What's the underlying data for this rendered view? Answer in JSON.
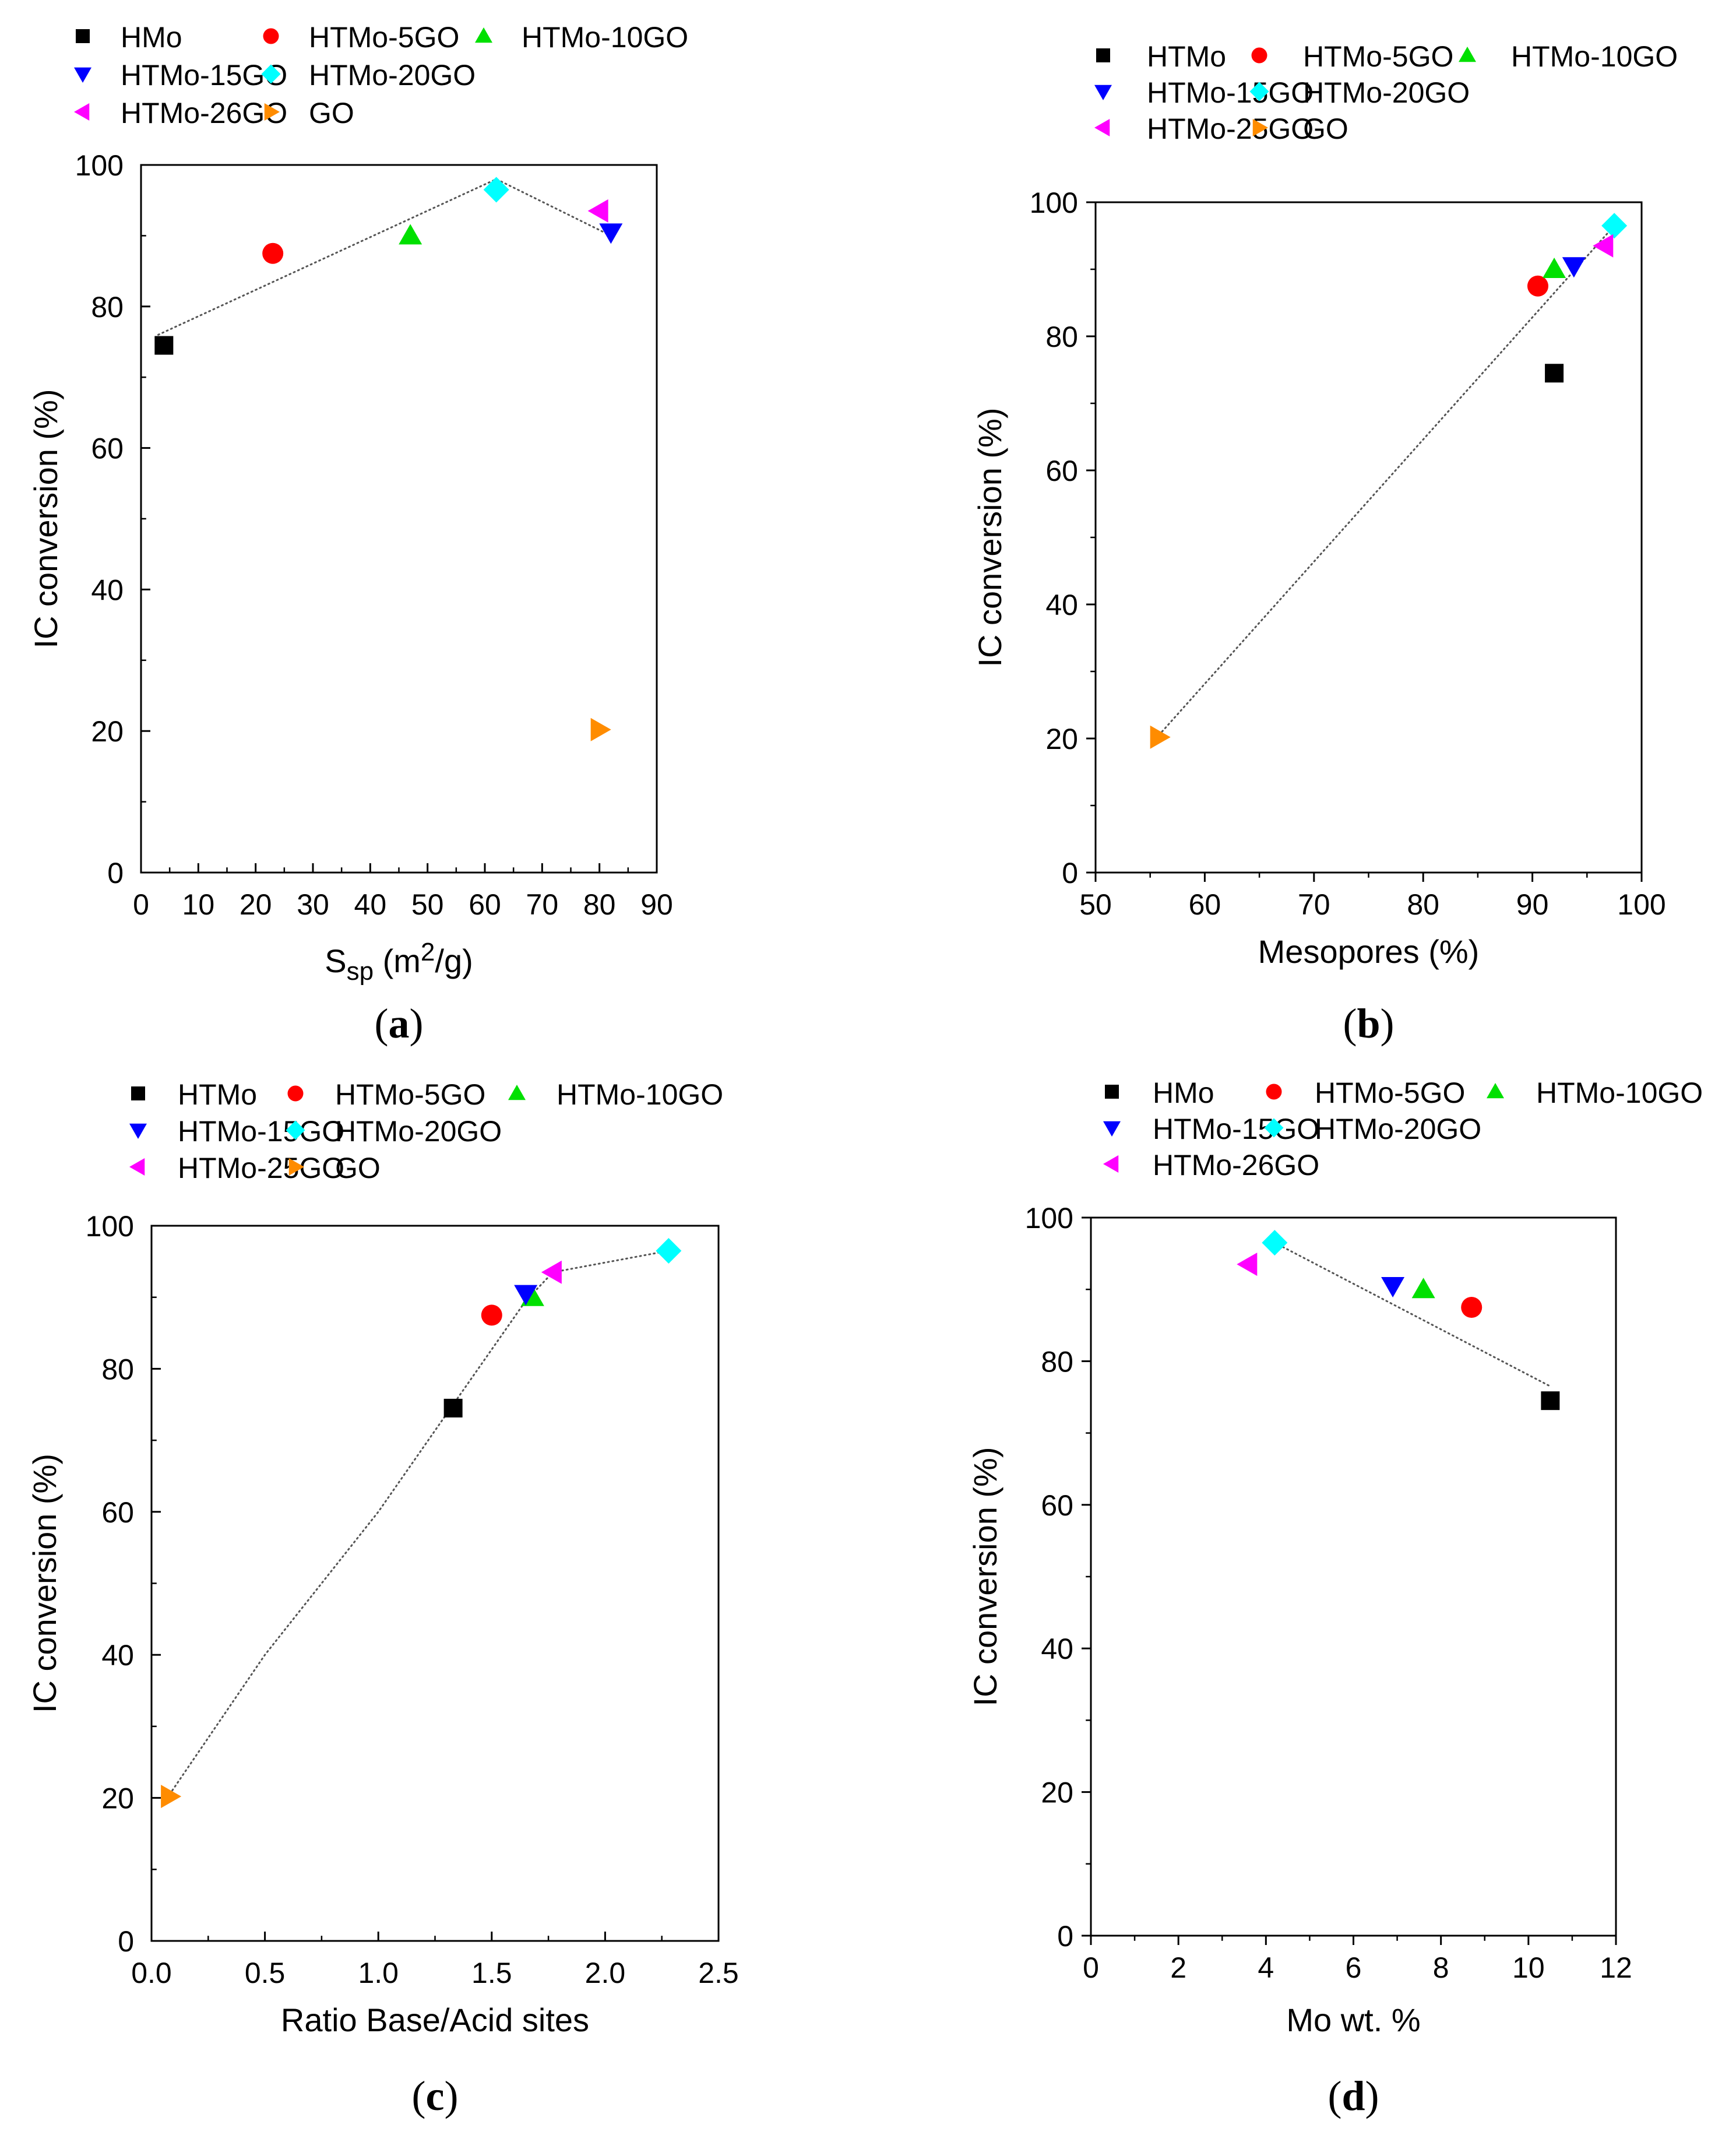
{
  "colors": {
    "HMo": "#000000",
    "HTMo": "#000000",
    "HTMo-5GO": "#ff0000",
    "HTMo-10GO": "#00e000",
    "HTMo-15GO": "#0000ff",
    "HTMo-20GO": "#00ffff",
    "HTMo-26GO": "#ff00ff",
    "HTMo-25GO": "#ff00ff",
    "GO": "#ff8c00",
    "trend": "#555555"
  },
  "chart_data": [
    {
      "id": "a",
      "type": "scatter",
      "caption": "a",
      "xlabel": "S",
      "xlabel_sub": "sp",
      "xlabel_unit_open": " (m",
      "xlabel_sup": "2",
      "xlabel_unit_close": "/g)",
      "ylabel": "IC conversion (%)",
      "xlim": [
        0,
        90
      ],
      "ylim": [
        0,
        100
      ],
      "xticks": [
        0,
        10,
        20,
        30,
        40,
        50,
        60,
        70,
        80,
        90
      ],
      "xtick_labels": [
        "0",
        "10",
        "20",
        "30",
        "40",
        "50",
        "60",
        "70",
        "80",
        "90"
      ],
      "yticks": [
        0,
        20,
        40,
        60,
        80,
        100
      ],
      "ytick_labels": [
        "0",
        "20",
        "40",
        "60",
        "80",
        "100"
      ],
      "legend_rows": [
        [
          "HMo",
          "HTMo-5GO",
          "HTMo-10GO"
        ],
        [
          "HTMo-15GO",
          "HTMo-20GO"
        ],
        [
          "HTMo-26GO",
          "GO"
        ]
      ],
      "series": [
        {
          "name": "HMo",
          "marker": "square",
          "x": 4,
          "y": 74.5
        },
        {
          "name": "HTMo-5GO",
          "marker": "circle",
          "x": 23,
          "y": 87.5
        },
        {
          "name": "HTMo-10GO",
          "marker": "triangle-up",
          "x": 47,
          "y": 90
        },
        {
          "name": "HTMo-15GO",
          "marker": "triangle-down",
          "x": 82,
          "y": 90.5
        },
        {
          "name": "HTMo-20GO",
          "marker": "diamond",
          "x": 62,
          "y": 96.5
        },
        {
          "name": "HTMo-26GO",
          "marker": "triangle-left",
          "x": 80,
          "y": 93.5
        },
        {
          "name": "GO",
          "marker": "triangle-right",
          "x": 80,
          "y": 20.2
        }
      ],
      "trendline": {
        "x": [
          3,
          62,
          82
        ],
        "y": [
          76,
          98,
          90
        ]
      }
    },
    {
      "id": "b",
      "type": "scatter",
      "caption": "b",
      "xlabel": "Mesopores (%)",
      "ylabel": "IC conversion (%)",
      "xlim": [
        50,
        100
      ],
      "ylim": [
        0,
        100
      ],
      "xticks": [
        50,
        60,
        70,
        80,
        90,
        100
      ],
      "xtick_labels": [
        "50",
        "60",
        "70",
        "80",
        "90",
        "100"
      ],
      "yticks": [
        0,
        20,
        40,
        60,
        80,
        100
      ],
      "ytick_labels": [
        "0",
        "20",
        "40",
        "60",
        "80",
        "100"
      ],
      "legend_rows": [
        [
          "HTMo",
          "HTMo-5GO",
          "HTMo-10GO"
        ],
        [
          "HTMo-15GO",
          "HTMo-20GO"
        ],
        [
          "HTMo-25GO",
          "GO"
        ]
      ],
      "series": [
        {
          "name": "HTMo",
          "marker": "square",
          "x": 92,
          "y": 74.5
        },
        {
          "name": "HTMo-5GO",
          "marker": "circle",
          "x": 90.5,
          "y": 87.5
        },
        {
          "name": "HTMo-10GO",
          "marker": "triangle-up",
          "x": 92,
          "y": 90
        },
        {
          "name": "HTMo-15GO",
          "marker": "triangle-down",
          "x": 93.8,
          "y": 90.5
        },
        {
          "name": "HTMo-20GO",
          "marker": "diamond",
          "x": 97.5,
          "y": 96.5
        },
        {
          "name": "HTMo-25GO",
          "marker": "triangle-left",
          "x": 96.6,
          "y": 93.5
        },
        {
          "name": "GO",
          "marker": "triangle-right",
          "x": 55.8,
          "y": 20.2
        }
      ],
      "trendline": {
        "x": [
          55.8,
          97.5
        ],
        "y": [
          20.5,
          96.5
        ]
      }
    },
    {
      "id": "c",
      "type": "scatter",
      "caption": "c",
      "xlabel": "Ratio Base/Acid sites",
      "ylabel": "IC conversion (%)",
      "xlim": [
        0,
        2.5
      ],
      "ylim": [
        0,
        100
      ],
      "xticks": [
        0,
        0.5,
        1,
        1.5,
        2,
        2.5
      ],
      "xtick_labels": [
        "0.0",
        "0.5",
        "1.0",
        "1.5",
        "2.0",
        "2.5"
      ],
      "yticks": [
        0,
        20,
        40,
        60,
        80,
        100
      ],
      "ytick_labels": [
        "0",
        "20",
        "40",
        "60",
        "80",
        "100"
      ],
      "legend_rows": [
        [
          "HTMo",
          "HTMo-5GO",
          "HTMo-10GO"
        ],
        [
          "HTMo-15GO",
          "HTMo-20GO"
        ],
        [
          "HTMo-25GO",
          "GO"
        ]
      ],
      "series": [
        {
          "name": "HTMo",
          "marker": "square",
          "x": 1.33,
          "y": 74.5
        },
        {
          "name": "HTMo-5GO",
          "marker": "circle",
          "x": 1.5,
          "y": 87.5
        },
        {
          "name": "HTMo-10GO",
          "marker": "triangle-up",
          "x": 1.68,
          "y": 90
        },
        {
          "name": "HTMo-15GO",
          "marker": "triangle-down",
          "x": 1.65,
          "y": 90.5
        },
        {
          "name": "HTMo-20GO",
          "marker": "diamond",
          "x": 2.28,
          "y": 96.5
        },
        {
          "name": "HTMo-25GO",
          "marker": "triangle-left",
          "x": 1.77,
          "y": 93.5
        },
        {
          "name": "GO",
          "marker": "triangle-right",
          "x": 0.08,
          "y": 20.2
        }
      ],
      "trendline": {
        "x": [
          0.08,
          0.5,
          1.0,
          1.33,
          1.65,
          1.77,
          2.28
        ],
        "y": [
          20.5,
          40,
          60,
          75,
          89.5,
          93.5,
          96.5
        ]
      }
    },
    {
      "id": "d",
      "type": "scatter",
      "caption": "d",
      "xlabel": "Mo wt. %",
      "ylabel": "IC conversion (%)",
      "xlim": [
        0,
        12
      ],
      "ylim": [
        0,
        100
      ],
      "xticks": [
        0,
        2,
        4,
        6,
        8,
        10,
        12
      ],
      "xtick_labels": [
        "0",
        "2",
        "4",
        "6",
        "8",
        "10",
        "12"
      ],
      "yticks": [
        0,
        20,
        40,
        60,
        80,
        100
      ],
      "ytick_labels": [
        "0",
        "20",
        "40",
        "60",
        "80",
        "100"
      ],
      "legend_rows": [
        [
          "HMo",
          "HTMo-5GO",
          "HTMo-10GO"
        ],
        [
          "HTMo-15GO",
          "HTMo-20GO"
        ],
        [
          "HTMo-26GO"
        ]
      ],
      "series": [
        {
          "name": "HMo",
          "marker": "square",
          "x": 10.5,
          "y": 74.5
        },
        {
          "name": "HTMo-5GO",
          "marker": "circle",
          "x": 8.7,
          "y": 87.5
        },
        {
          "name": "HTMo-10GO",
          "marker": "triangle-up",
          "x": 7.6,
          "y": 90
        },
        {
          "name": "HTMo-15GO",
          "marker": "triangle-down",
          "x": 6.9,
          "y": 90.5
        },
        {
          "name": "HTMo-20GO",
          "marker": "diamond",
          "x": 4.2,
          "y": 96.5
        },
        {
          "name": "HTMo-26GO",
          "marker": "triangle-left",
          "x": 3.6,
          "y": 93.5
        }
      ],
      "trendline": {
        "x": [
          4.2,
          10.5
        ],
        "y": [
          96.5,
          76.5
        ]
      }
    }
  ]
}
